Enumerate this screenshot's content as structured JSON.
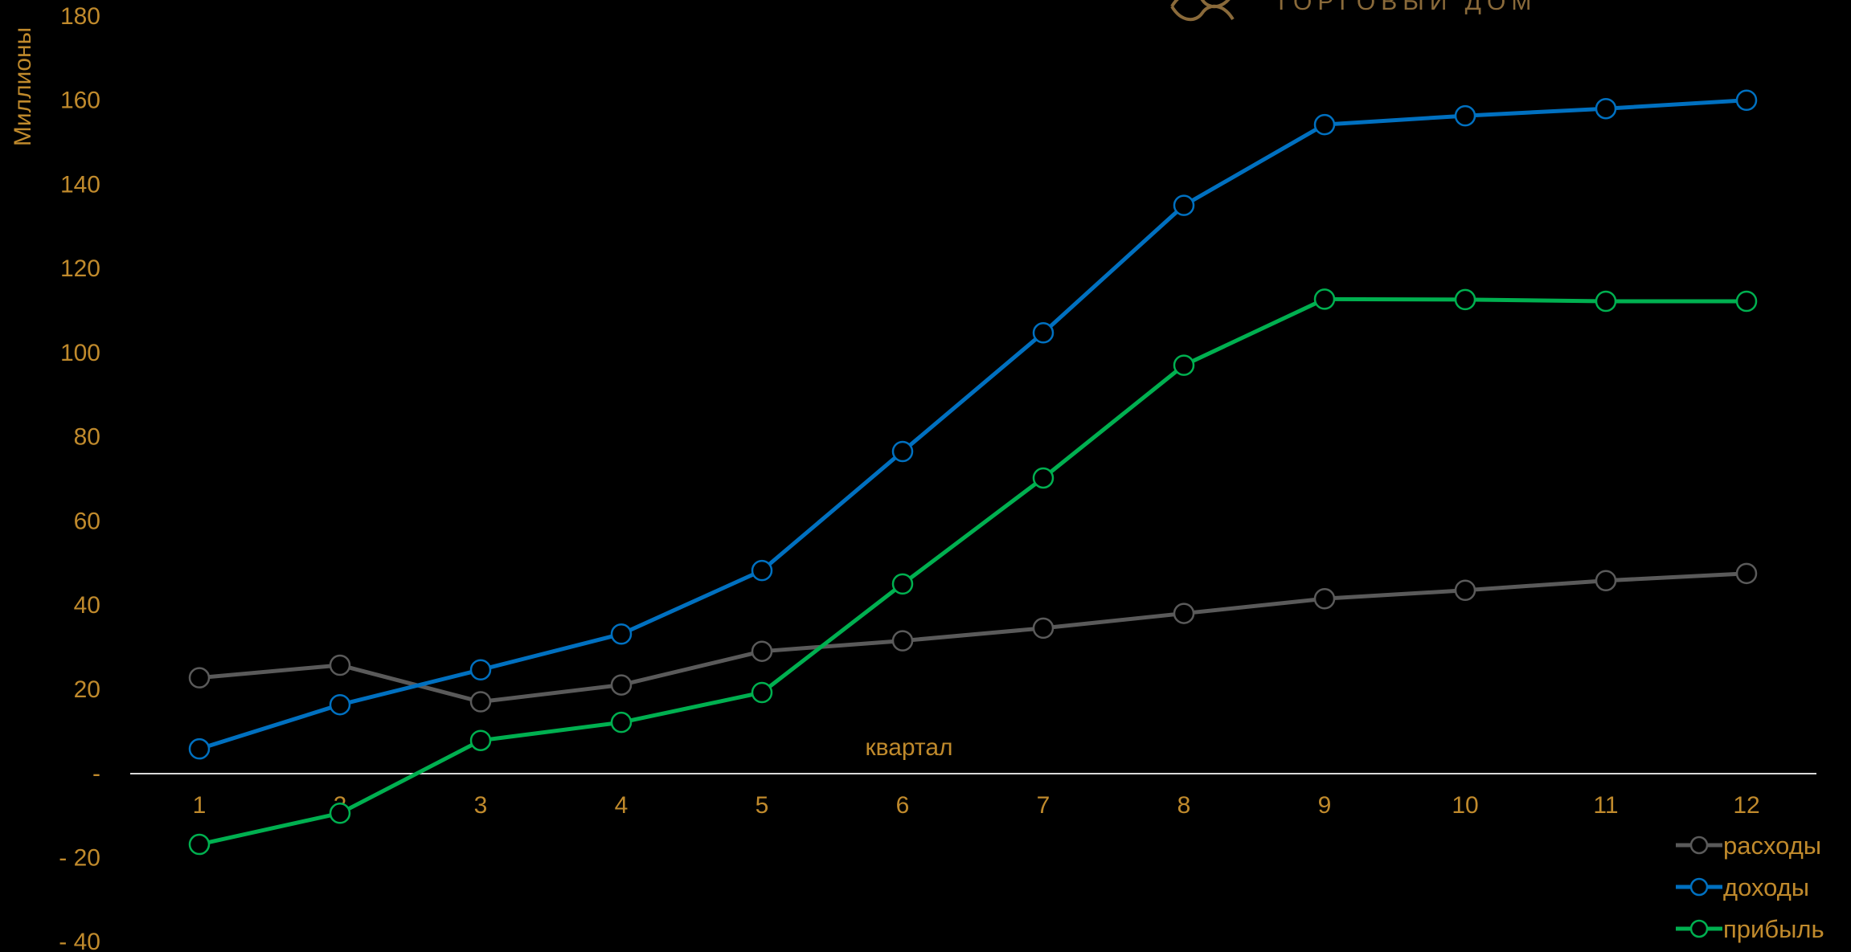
{
  "logo": {
    "text": "ТОРГОВЫЙ ДОМ"
  },
  "colors": {
    "background": "#000000",
    "label": "#c08a2c",
    "axis": "#d9d9d9",
    "logo": "#8a6a3a"
  },
  "chart_data": {
    "type": "line",
    "title": "",
    "xlabel": "квартал",
    "ylabel": "Миллионы",
    "x": [
      1,
      2,
      3,
      4,
      5,
      6,
      7,
      8,
      9,
      10,
      11,
      12
    ],
    "ylim": [
      -40,
      180
    ],
    "yticks": [
      180,
      160,
      140,
      120,
      100,
      80,
      60,
      40,
      20,
      0,
      -20,
      -40
    ],
    "ytick_labels": [
      "180",
      "160",
      "140",
      "120",
      "100",
      "80",
      "60",
      "40",
      "20",
      "-",
      "- 20",
      "- 40"
    ],
    "grid": false,
    "legend_position": "bottom-right",
    "series": [
      {
        "name": "расходы",
        "color": "#5a5a5a",
        "values": [
          22.7,
          25.7,
          17.0,
          21.0,
          29.0,
          31.5,
          34.5,
          38.0,
          41.5,
          43.5,
          45.8,
          47.5
        ]
      },
      {
        "name": "доходы",
        "color": "#0070c0",
        "values": [
          5.8,
          16.3,
          24.6,
          33.1,
          48.2,
          76.5,
          104.7,
          135.0,
          154.2,
          156.3,
          158.0,
          160.0
        ]
      },
      {
        "name": "прибыль",
        "color": "#00b050",
        "values": [
          -16.9,
          -9.5,
          7.8,
          12.1,
          19.2,
          45.0,
          70.2,
          97.0,
          112.7,
          112.6,
          112.2,
          112.2
        ]
      }
    ]
  }
}
